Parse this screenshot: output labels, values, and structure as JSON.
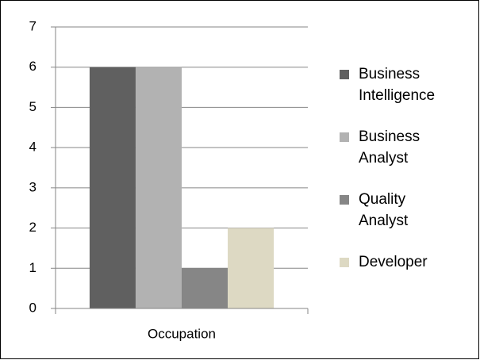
{
  "chart_data": {
    "type": "bar",
    "categories": [
      "Occupation"
    ],
    "series": [
      {
        "name": "Business Intelligence",
        "color": "#606060",
        "values": [
          6
        ]
      },
      {
        "name": "Business Analyst",
        "color": "#b2b2b2",
        "values": [
          6
        ]
      },
      {
        "name": "Quality Analyst",
        "color": "#868686",
        "values": [
          1
        ]
      },
      {
        "name": "Developer",
        "color": "#ddd9c3",
        "values": [
          2
        ]
      }
    ],
    "ylim": [
      0,
      7
    ],
    "yticks": [
      0,
      1,
      2,
      3,
      4,
      5,
      6,
      7
    ],
    "grid": true,
    "legend": "right"
  }
}
